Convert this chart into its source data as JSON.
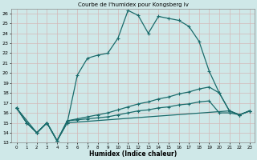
{
  "title": "Courbe de l'humidex pour Kongsberg Iv",
  "xlabel": "Humidex (Indice chaleur)",
  "xlim": [
    -0.5,
    23.5
  ],
  "ylim": [
    13,
    26.5
  ],
  "yticks": [
    13,
    14,
    15,
    16,
    17,
    18,
    19,
    20,
    21,
    22,
    23,
    24,
    25,
    26
  ],
  "xticks": [
    0,
    1,
    2,
    3,
    4,
    5,
    6,
    7,
    8,
    9,
    10,
    11,
    12,
    13,
    14,
    15,
    16,
    17,
    18,
    19,
    20,
    21,
    22,
    23
  ],
  "bg_color": "#cfe8e8",
  "line_color": "#1a6b6b",
  "line1_x": [
    0,
    1,
    2,
    3,
    4,
    5,
    6,
    7,
    8,
    9,
    10,
    11,
    12,
    13,
    14,
    15,
    16,
    17,
    18,
    19,
    20,
    21,
    22,
    23
  ],
  "line1_y": [
    16.5,
    15.0,
    14.0,
    15.0,
    13.2,
    15.0,
    19.8,
    21.5,
    21.8,
    22.0,
    23.5,
    26.3,
    25.8,
    24.0,
    25.7,
    25.5,
    25.3,
    24.7,
    23.2,
    20.2,
    18.0,
    16.2,
    15.8,
    16.2
  ],
  "line2_x": [
    0,
    2,
    3,
    4,
    5,
    21,
    22,
    23
  ],
  "line2_y": [
    16.5,
    14.0,
    15.0,
    13.2,
    15.0,
    16.2,
    15.8,
    16.2
  ],
  "line3_x": [
    0,
    1,
    2,
    3,
    4,
    5,
    6,
    7,
    8,
    9,
    10,
    11,
    12,
    13,
    14,
    15,
    16,
    17,
    18,
    19,
    20,
    21,
    22,
    23
  ],
  "line3_y": [
    16.5,
    15.0,
    14.0,
    15.0,
    13.2,
    15.2,
    15.4,
    15.6,
    15.8,
    16.0,
    16.3,
    16.6,
    16.9,
    17.1,
    17.4,
    17.6,
    17.9,
    18.1,
    18.4,
    18.6,
    18.0,
    16.2,
    15.8,
    16.2
  ],
  "line4_x": [
    0,
    1,
    2,
    3,
    4,
    5,
    6,
    7,
    8,
    9,
    10,
    11,
    12,
    13,
    14,
    15,
    16,
    17,
    18,
    19,
    20,
    21,
    22,
    23
  ],
  "line4_y": [
    16.5,
    15.0,
    14.0,
    15.0,
    13.2,
    15.2,
    15.3,
    15.4,
    15.5,
    15.6,
    15.8,
    16.0,
    16.2,
    16.3,
    16.5,
    16.6,
    16.8,
    16.9,
    17.1,
    17.2,
    16.0,
    16.0,
    15.8,
    16.2
  ]
}
